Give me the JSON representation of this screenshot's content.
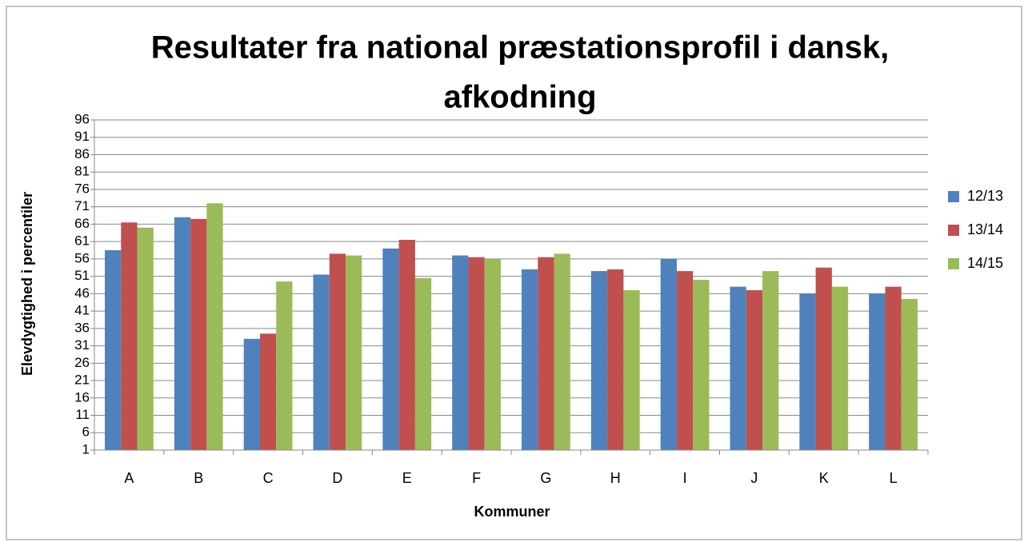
{
  "chart_data": {
    "type": "bar",
    "title": [
      "Resultater fra national præstationsprofil i dansk,",
      "afkodning"
    ],
    "x_label": "Kommuner",
    "y_label": "Elevdygtighed i percentiler",
    "categories": [
      "A",
      "B",
      "C",
      "D",
      "E",
      "F",
      "G",
      "H",
      "I",
      "J",
      "K",
      "L"
    ],
    "series": [
      {
        "name": "12/13",
        "color": "#4f81bd",
        "values": [
          58.5,
          68,
          33,
          51.5,
          59,
          57,
          53,
          52.5,
          56,
          48,
          46,
          46
        ]
      },
      {
        "name": "13/14",
        "color": "#c0504d",
        "values": [
          66.5,
          67.5,
          34.5,
          57.5,
          61.5,
          56.5,
          56.5,
          53,
          52.5,
          47,
          53.5,
          48
        ]
      },
      {
        "name": "14/15",
        "color": "#9bbb59",
        "values": [
          65,
          72,
          49.5,
          57,
          50.5,
          56,
          57.5,
          47,
          50,
          52.5,
          48,
          44.5
        ]
      }
    ],
    "ylim": [
      1,
      96
    ],
    "yticks": [
      1,
      6,
      11,
      16,
      21,
      26,
      31,
      36,
      41,
      46,
      51,
      56,
      61,
      66,
      71,
      76,
      81,
      86,
      91,
      96
    ],
    "grid": true,
    "legend": "right"
  }
}
